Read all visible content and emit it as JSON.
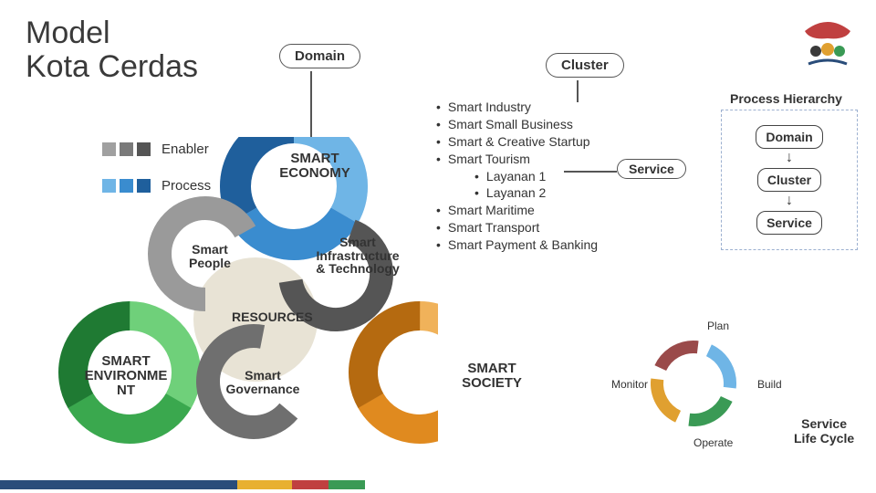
{
  "title_line1": "Model",
  "title_line2": "Kota Cerdas",
  "legend": {
    "enabler": {
      "label": "Enabler",
      "colors": [
        "#a0a0a0",
        "#7a7a7a",
        "#555555"
      ]
    },
    "process": {
      "label": "Process",
      "colors": [
        "#6fb5e6",
        "#3a8ccf",
        "#1f5f9c"
      ]
    }
  },
  "callouts": {
    "domain": "Domain",
    "cluster": "Cluster",
    "service": "Service"
  },
  "bullets": {
    "items": [
      "Smart Industry",
      "Smart Small Business",
      "Smart & Creative Startup",
      "Smart Tourism"
    ],
    "subitems": [
      "Layanan 1",
      "Layanan 2"
    ],
    "items2": [
      "Smart Maritime",
      "Smart Transport",
      "Smart Payment & Banking"
    ]
  },
  "hierarchy": {
    "title": "Process Hierarchy",
    "levels": [
      "Domain",
      "Cluster",
      "Service"
    ]
  },
  "donuts": {
    "economy": {
      "label": "SMART\nECONOMY",
      "colors": [
        "#6fb5e6",
        "#3a8ccf",
        "#1f5f9c"
      ]
    },
    "environment": {
      "label": "SMART\nENVIRONME\nNT",
      "colors": [
        "#6fd07a",
        "#3aa84e",
        "#1f7a33"
      ]
    },
    "society": {
      "label": "SMART\nSOCIETY",
      "colors": [
        "#f0b25a",
        "#e08a1f",
        "#b56a10"
      ]
    },
    "people": {
      "label": "Smart\nPeople",
      "color": "#9a9a9a"
    },
    "governance": {
      "label": "Smart\nGovernance",
      "color": "#6f6f6f"
    },
    "infra": {
      "label": "Smart\nInfrastructure\n& Technology",
      "color": "#555555"
    }
  },
  "resources_label": "RESOURCES",
  "lifecycle": {
    "nodes": [
      "Plan",
      "Build",
      "Operate",
      "Monitor"
    ],
    "title": "Service\nLife Cycle",
    "arc_colors": [
      "#6fb5e6",
      "#3aa84e",
      "#e0a030",
      "#c05050"
    ]
  },
  "stripe_colors": [
    "#2a4d7a",
    "#e8b030",
    "#c04040",
    "#3a9a55"
  ],
  "stripe_widths": [
    260,
    60,
    40,
    40
  ]
}
